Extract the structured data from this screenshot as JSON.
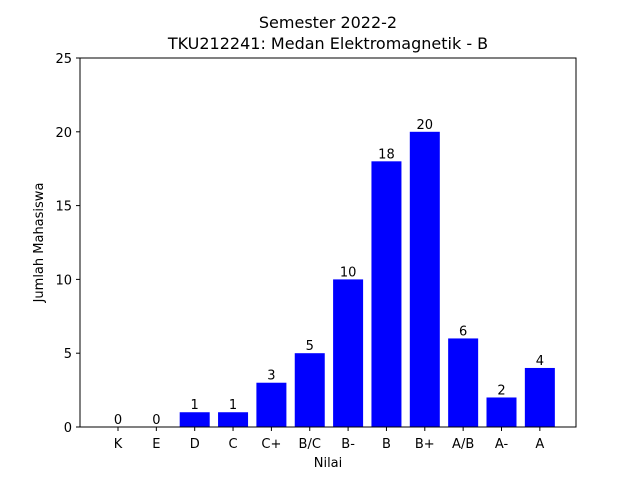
{
  "chart_data": {
    "type": "bar",
    "title": "Semester 2022-2",
    "subtitle": "TKU212241: Medan Elektromagnetik - B",
    "xlabel": "Nilai",
    "ylabel": "Jumlah Mahasiswa",
    "categories": [
      "K",
      "E",
      "D",
      "C",
      "C+",
      "B/C",
      "B-",
      "B",
      "B+",
      "A/B",
      "A-",
      "A"
    ],
    "values": [
      0,
      0,
      1,
      1,
      3,
      5,
      10,
      18,
      20,
      6,
      2,
      4
    ],
    "data_labels": [
      "0",
      "0",
      "1",
      "1",
      "3",
      "5",
      "10",
      "18",
      "20",
      "6",
      "2",
      "4"
    ],
    "ylim": [
      0,
      25
    ],
    "yticks": [
      0,
      5,
      10,
      15,
      20,
      25
    ],
    "ytick_labels": [
      "0",
      "5",
      "10",
      "15",
      "20",
      "25"
    ],
    "bar_color": "#0000ff",
    "grid": false,
    "legend": "none"
  }
}
